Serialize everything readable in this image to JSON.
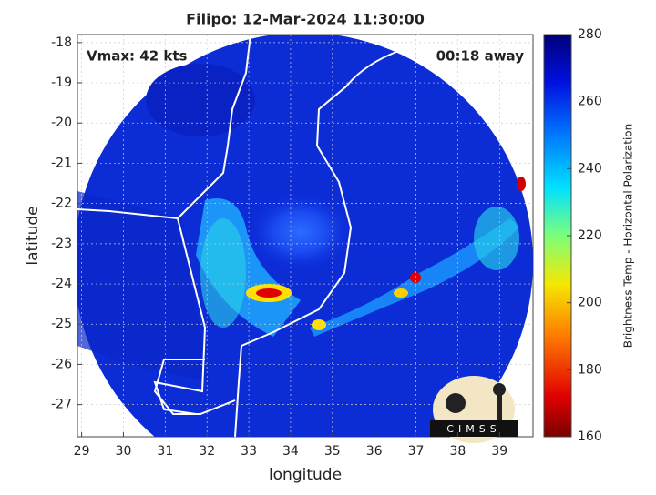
{
  "chart_data": {
    "type": "map",
    "title": "Filipo: 12-Mar-2024 11:30:00",
    "annotations": [
      "Vmax: 42 kts",
      "00:18 away"
    ],
    "xlabel": "longitude",
    "ylabel": "latitude",
    "xlim": [
      28.9,
      39.8
    ],
    "ylim": [
      -27.8,
      -17.8
    ],
    "xticks": [
      29,
      30,
      31,
      32,
      33,
      34,
      35,
      36,
      37,
      38,
      39
    ],
    "yticks": [
      -27,
      -26,
      -25,
      -24,
      -23,
      -22,
      -21,
      -20,
      -19,
      -18
    ],
    "grid": true,
    "colorbar": {
      "label": "Brightness Temp - Horizontal Polarization",
      "lim": [
        160,
        280
      ],
      "ticks": [
        160,
        180,
        200,
        220,
        240,
        260,
        280
      ]
    },
    "logo": "CIMSS"
  }
}
